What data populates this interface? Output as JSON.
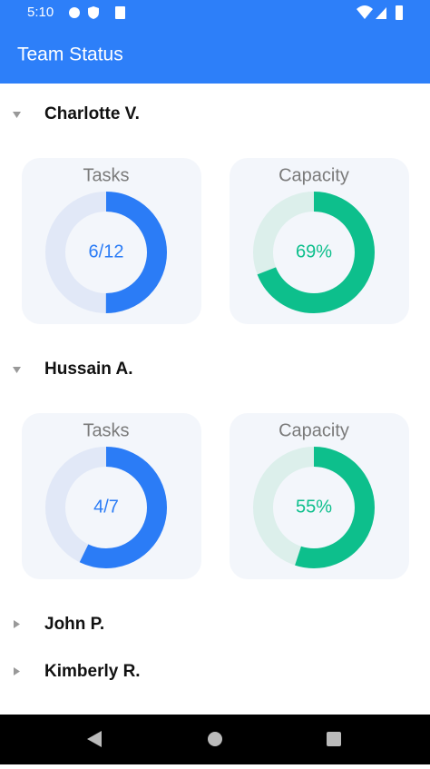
{
  "status_bar": {
    "time": "5:10"
  },
  "app_bar": {
    "title": "Team Status"
  },
  "members": [
    {
      "name": "Charlotte V.",
      "expanded": true,
      "tasks": {
        "heading": "Tasks",
        "done": 6,
        "total": 12,
        "label": "6/12"
      },
      "capacity": {
        "heading": "Capacity",
        "value": 69,
        "label": "69%"
      }
    },
    {
      "name": "Hussain A.",
      "expanded": true,
      "tasks": {
        "heading": "Tasks",
        "done": 4,
        "total": 7,
        "label": "4/7"
      },
      "capacity": {
        "heading": "Capacity",
        "value": 55,
        "label": "55%"
      }
    },
    {
      "name": "John P.",
      "expanded": false
    },
    {
      "name": "Kimberly R.",
      "expanded": false
    }
  ]
}
